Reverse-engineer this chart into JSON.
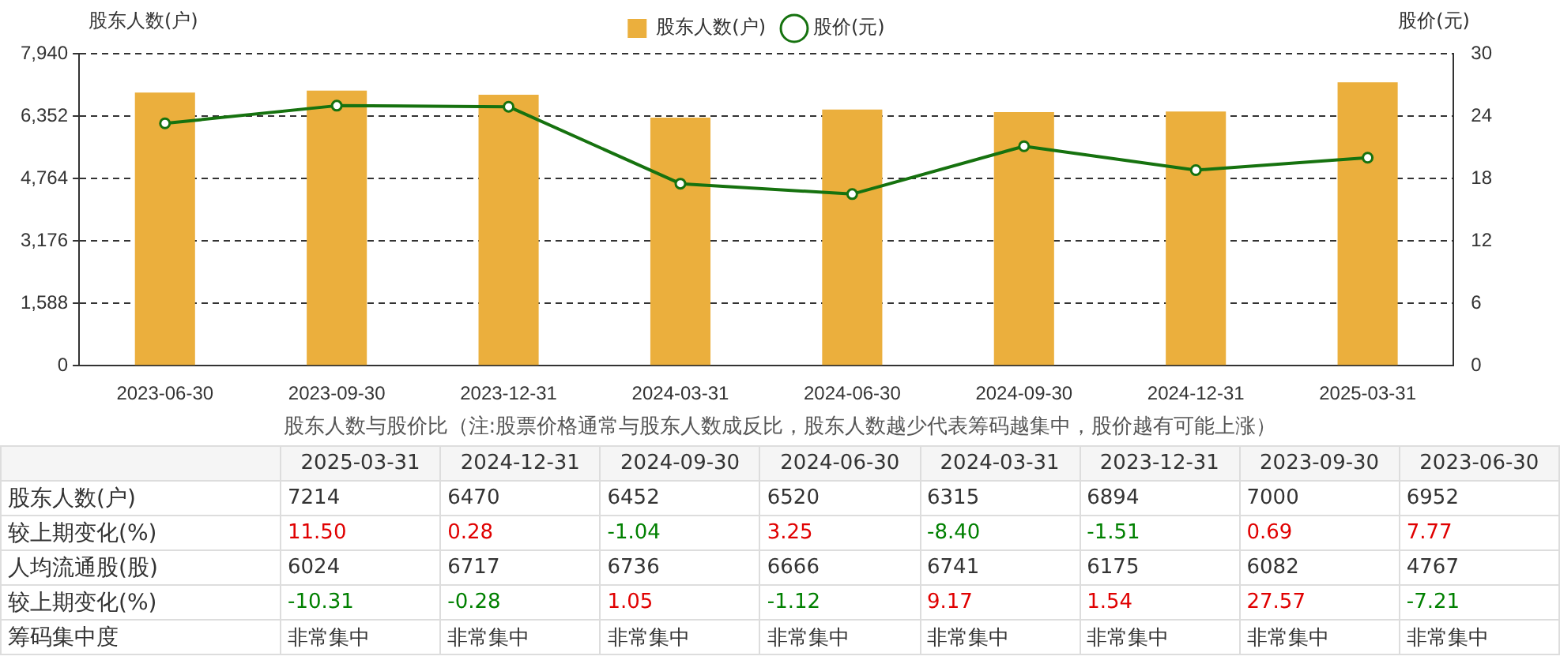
{
  "chart_data": [
    {
      "type": "bar",
      "categories": [
        "2023-06-30",
        "2023-09-30",
        "2023-12-31",
        "2024-03-31",
        "2024-06-30",
        "2024-09-30",
        "2024-12-31",
        "2025-03-31"
      ],
      "series": [
        {
          "name": "股东人数(户)",
          "type": "bar",
          "color": "#ebaf3d",
          "values": [
            6952,
            7000,
            6894,
            6315,
            6520,
            6452,
            6470,
            7214
          ]
        },
        {
          "name": "股价(元)",
          "type": "line",
          "axis": "y2",
          "color": "#16720f",
          "values": [
            23.3,
            25.0,
            24.9,
            17.5,
            16.5,
            21.1,
            18.8,
            20.0
          ]
        }
      ],
      "ylabel": "股东人数(户)",
      "y2label": "股价(元)",
      "ylim": [
        0,
        7940
      ],
      "yticks": [
        0,
        {
          "value": 1588,
          "label": "1,588"
        },
        {
          "value": 3176,
          "label": "3,176"
        },
        {
          "value": 4764,
          "label": "4,764"
        },
        {
          "value": 6352,
          "label": "6,352"
        },
        {
          "value": 7940,
          "label": "7,940"
        }
      ],
      "y2lim": [
        0,
        30
      ],
      "y2ticks": [
        0,
        6,
        12,
        18,
        24,
        30
      ],
      "grid": "y",
      "legend": "top",
      "marker": "circle"
    },
    {
      "type": "other",
      "title": "股东人数与股价比（注:股票价格通常与股东人数成反比，股东人数越少代表筹码越集中，股价越有可能上涨）",
      "categories": [
        "2025-03-31",
        "2024-12-31",
        "2024-09-30",
        "2024-06-30",
        "2024-03-31",
        "2023-12-31",
        "2023-09-30",
        "2023-06-30"
      ],
      "data_labels": true,
      "series": [
        {
          "name": "股东人数(户)",
          "color": "#333333",
          "values": [
            7214,
            6470,
            6452,
            6520,
            6315,
            6894,
            7000,
            6952
          ]
        },
        {
          "name": "较上期变化(%)",
          "colors": [
            "#e00000",
            "#e00000",
            "#008000",
            "#e00000",
            "#008000",
            "#008000",
            "#e00000",
            "#e00000"
          ],
          "values": [
            11.5,
            0.28,
            -1.04,
            3.25,
            -8.4,
            -1.51,
            0.69,
            7.77
          ],
          "value_labels": [
            "11.50",
            "0.28",
            "-1.04",
            "3.25",
            "-8.40",
            "-1.51",
            "0.69",
            "7.77"
          ]
        },
        {
          "name": "人均流通股(股)",
          "color": "#333333",
          "values": [
            6024,
            6717,
            6736,
            6666,
            6741,
            6175,
            6082,
            4767
          ]
        },
        {
          "name": "较上期变化(%)",
          "colors": [
            "#008000",
            "#008000",
            "#e00000",
            "#008000",
            "#e00000",
            "#e00000",
            "#e00000",
            "#008000"
          ],
          "values": [
            -10.31,
            -0.28,
            1.05,
            -1.12,
            9.17,
            1.54,
            27.57,
            -7.21
          ]
        },
        {
          "name": "筹码集中度",
          "color": "#333333",
          "values": [
            null,
            null,
            null,
            null,
            null,
            null,
            null,
            null
          ],
          "value_labels": [
            "非常集中",
            "非常集中",
            "非常集中",
            "非常集中",
            "非常集中",
            "非常集中",
            "非常集中",
            "非常集中"
          ]
        }
      ]
    }
  ]
}
